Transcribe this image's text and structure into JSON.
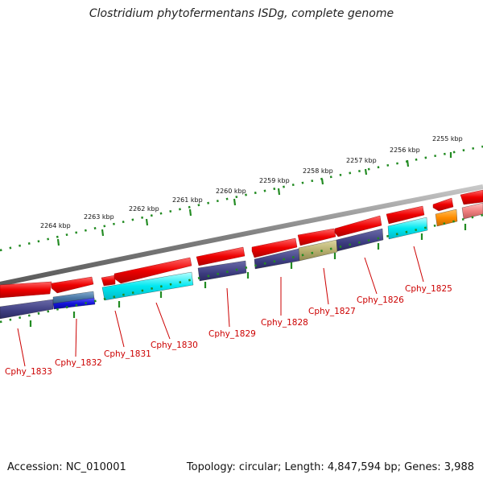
{
  "title": "Clostridium phytofermentans ISDg, complete genome",
  "footer": {
    "accession": "Accession: NC_010001",
    "stats": "Topology: circular; Length: 4,847,594 bp; Genes: 3,988"
  },
  "scale_labels": [
    "2255 kbp",
    "2256 kbp",
    "2257 kbp",
    "2258 kbp",
    "2259 kbp",
    "2260 kbp",
    "2261 kbp",
    "2262 kbp",
    "2263 kbp",
    "2264 kbp"
  ],
  "gene_labels": [
    "Cphy_1825",
    "Cphy_1826",
    "Cphy_1827",
    "Cphy_1828",
    "Cphy_1829",
    "Cphy_1830",
    "Cphy_1831",
    "Cphy_1832",
    "Cphy_1833"
  ],
  "colors": {
    "forward_gene": "#ee0000",
    "cog_navy": "#3d3d80",
    "cog_cyan": "#00e8f0",
    "cog_olive": "#b8b070",
    "cog_blue": "#1414d8",
    "cog_steel": "#4a78a8",
    "cog_orange": "#ff8c00",
    "cog_pink": "#f08080",
    "backbone": "#808080",
    "tick": "#228b22"
  }
}
